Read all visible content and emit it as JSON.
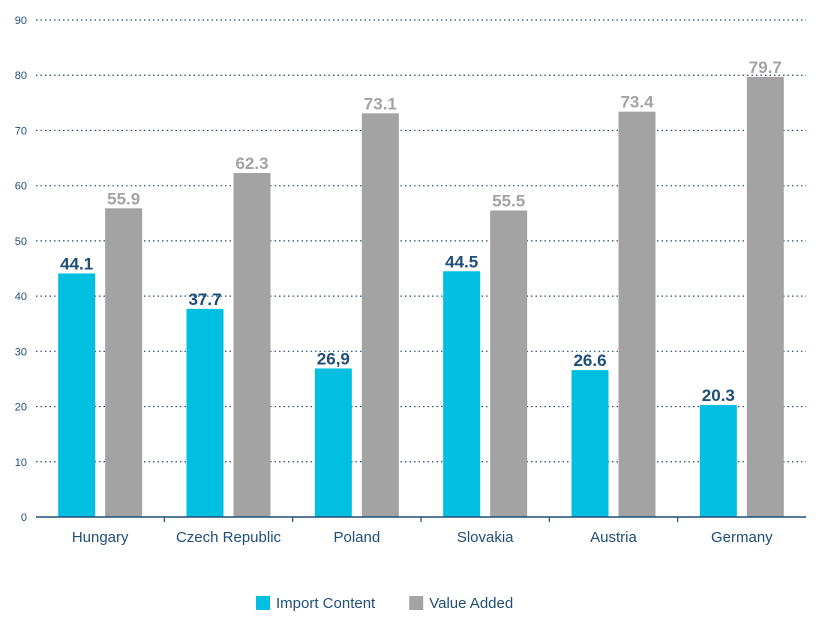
{
  "chart_data": {
    "type": "bar",
    "categories": [
      "Hungary",
      "Czech Republic",
      "Poland",
      "Slovakia",
      "Austria",
      "Germany"
    ],
    "series": [
      {
        "name": "Import Content",
        "values": [
          44.1,
          37.7,
          26.9,
          44.5,
          26.6,
          20.3
        ],
        "labels": [
          "44.1",
          "37.7",
          "26,9",
          "44.5",
          "26.6",
          "20.3"
        ],
        "color": "#00bfe0",
        "label_color": "#1f4e79"
      },
      {
        "name": "Value Added",
        "values": [
          55.9,
          62.3,
          73.1,
          55.5,
          73.4,
          79.7
        ],
        "labels": [
          "55.9",
          "62.3",
          "73.1",
          "55.5",
          "73.4",
          "79.7"
        ],
        "color": "#a3a3a3",
        "label_color": "#a3a3a3"
      }
    ],
    "yticks": [
      "0",
      "10",
      "20",
      "30",
      "40",
      "50",
      "60",
      "70",
      "80",
      "90"
    ],
    "ylim": [
      0,
      90
    ],
    "grid": "dotted horizontal",
    "legend": "bottom-center",
    "axis_color": "#1f4e79"
  }
}
